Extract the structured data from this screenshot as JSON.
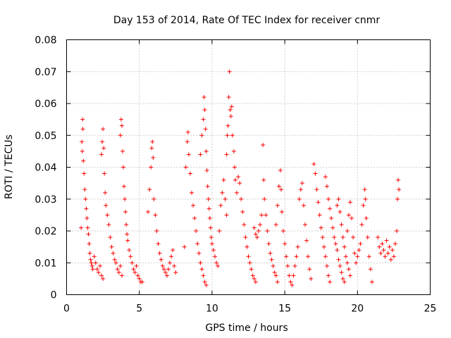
{
  "chart_data": {
    "type": "scatter",
    "title": "Day 153 of 2014, Rate Of TEC Index for receiver cnmr",
    "xlabel": "GPS time / hours",
    "ylabel": "ROTI / TECUs",
    "xlim": [
      0,
      25
    ],
    "ylim": [
      0,
      0.08
    ],
    "xticks": [
      "0",
      "5",
      "10",
      "15",
      "20",
      "25"
    ],
    "yticks": [
      "0",
      "0.01",
      "0.02",
      "0.03",
      "0.04",
      "0.05",
      "0.06",
      "0.07",
      "0.08"
    ],
    "grid": true,
    "marker": "plus",
    "color": "#ff0000",
    "series": [
      {
        "name": "ROTI",
        "points": [
          [
            1.0,
            0.021
          ],
          [
            1.05,
            0.048
          ],
          [
            1.08,
            0.045
          ],
          [
            1.1,
            0.055
          ],
          [
            1.12,
            0.052
          ],
          [
            1.15,
            0.042
          ],
          [
            1.2,
            0.038
          ],
          [
            1.25,
            0.033
          ],
          [
            1.3,
            0.03
          ],
          [
            1.35,
            0.027
          ],
          [
            1.4,
            0.024
          ],
          [
            1.45,
            0.021
          ],
          [
            1.5,
            0.019
          ],
          [
            1.55,
            0.016
          ],
          [
            1.6,
            0.013
          ],
          [
            1.65,
            0.011
          ],
          [
            1.7,
            0.01
          ],
          [
            1.75,
            0.009
          ],
          [
            1.8,
            0.008
          ],
          [
            1.9,
            0.012
          ],
          [
            2.0,
            0.01
          ],
          [
            2.1,
            0.008
          ],
          [
            2.2,
            0.007
          ],
          [
            2.3,
            0.009
          ],
          [
            2.4,
            0.006
          ],
          [
            2.5,
            0.005
          ],
          [
            2.4,
            0.044
          ],
          [
            2.45,
            0.048
          ],
          [
            2.5,
            0.052
          ],
          [
            2.55,
            0.046
          ],
          [
            2.6,
            0.038
          ],
          [
            2.65,
            0.032
          ],
          [
            2.7,
            0.028
          ],
          [
            2.8,
            0.025
          ],
          [
            2.9,
            0.022
          ],
          [
            3.0,
            0.018
          ],
          [
            3.1,
            0.015
          ],
          [
            3.2,
            0.013
          ],
          [
            3.3,
            0.011
          ],
          [
            3.4,
            0.01
          ],
          [
            3.5,
            0.008
          ],
          [
            3.6,
            0.007
          ],
          [
            3.7,
            0.009
          ],
          [
            3.8,
            0.006
          ],
          [
            3.7,
            0.05
          ],
          [
            3.75,
            0.055
          ],
          [
            3.8,
            0.053
          ],
          [
            3.85,
            0.045
          ],
          [
            3.9,
            0.04
          ],
          [
            3.95,
            0.034
          ],
          [
            4.0,
            0.03
          ],
          [
            4.05,
            0.026
          ],
          [
            4.1,
            0.022
          ],
          [
            4.15,
            0.019
          ],
          [
            4.2,
            0.017
          ],
          [
            4.3,
            0.014
          ],
          [
            4.4,
            0.012
          ],
          [
            4.5,
            0.01
          ],
          [
            4.6,
            0.008
          ],
          [
            4.7,
            0.007
          ],
          [
            4.8,
            0.009
          ],
          [
            4.9,
            0.006
          ],
          [
            5.0,
            0.005
          ],
          [
            5.1,
            0.004
          ],
          [
            5.2,
            0.004
          ],
          [
            5.6,
            0.026
          ],
          [
            5.7,
            0.033
          ],
          [
            5.8,
            0.04
          ],
          [
            5.85,
            0.046
          ],
          [
            5.9,
            0.048
          ],
          [
            5.95,
            0.043
          ],
          [
            6.0,
            0.03
          ],
          [
            6.1,
            0.025
          ],
          [
            6.2,
            0.02
          ],
          [
            6.3,
            0.016
          ],
          [
            6.4,
            0.013
          ],
          [
            6.5,
            0.011
          ],
          [
            6.6,
            0.009
          ],
          [
            6.7,
            0.008
          ],
          [
            6.8,
            0.007
          ],
          [
            6.9,
            0.006
          ],
          [
            7.0,
            0.008
          ],
          [
            7.1,
            0.01
          ],
          [
            7.2,
            0.012
          ],
          [
            7.3,
            0.014
          ],
          [
            7.4,
            0.009
          ],
          [
            7.5,
            0.007
          ],
          [
            8.1,
            0.015
          ],
          [
            8.2,
            0.04
          ],
          [
            8.3,
            0.048
          ],
          [
            8.35,
            0.051
          ],
          [
            8.4,
            0.044
          ],
          [
            8.5,
            0.038
          ],
          [
            8.6,
            0.032
          ],
          [
            8.7,
            0.028
          ],
          [
            8.8,
            0.024
          ],
          [
            8.9,
            0.02
          ],
          [
            9.0,
            0.016
          ],
          [
            9.1,
            0.013
          ],
          [
            9.2,
            0.01
          ],
          [
            9.3,
            0.008
          ],
          [
            9.4,
            0.006
          ],
          [
            9.5,
            0.004
          ],
          [
            9.6,
            0.003
          ],
          [
            9.2,
            0.044
          ],
          [
            9.3,
            0.05
          ],
          [
            9.4,
            0.055
          ],
          [
            9.45,
            0.062
          ],
          [
            9.5,
            0.058
          ],
          [
            9.55,
            0.052
          ],
          [
            9.6,
            0.045
          ],
          [
            9.65,
            0.039
          ],
          [
            9.7,
            0.034
          ],
          [
            9.75,
            0.03
          ],
          [
            9.8,
            0.027
          ],
          [
            9.85,
            0.024
          ],
          [
            9.9,
            0.021
          ],
          [
            9.95,
            0.018
          ],
          [
            10.0,
            0.016
          ],
          [
            10.1,
            0.014
          ],
          [
            10.2,
            0.012
          ],
          [
            10.3,
            0.01
          ],
          [
            10.4,
            0.009
          ],
          [
            10.5,
            0.02
          ],
          [
            10.6,
            0.028
          ],
          [
            10.7,
            0.032
          ],
          [
            10.8,
            0.036
          ],
          [
            10.9,
            0.03
          ],
          [
            11.0,
            0.025
          ],
          [
            11.0,
            0.044
          ],
          [
            11.05,
            0.05
          ],
          [
            11.1,
            0.053
          ],
          [
            11.15,
            0.062
          ],
          [
            11.2,
            0.07
          ],
          [
            11.25,
            0.058
          ],
          [
            11.3,
            0.056
          ],
          [
            11.35,
            0.059
          ],
          [
            11.4,
            0.05
          ],
          [
            11.5,
            0.045
          ],
          [
            11.55,
            0.04
          ],
          [
            11.6,
            0.036
          ],
          [
            11.7,
            0.032
          ],
          [
            11.8,
            0.037
          ],
          [
            11.9,
            0.035
          ],
          [
            12.0,
            0.03
          ],
          [
            12.1,
            0.026
          ],
          [
            12.2,
            0.022
          ],
          [
            12.3,
            0.018
          ],
          [
            12.4,
            0.015
          ],
          [
            12.5,
            0.012
          ],
          [
            12.6,
            0.01
          ],
          [
            12.7,
            0.008
          ],
          [
            12.8,
            0.006
          ],
          [
            12.9,
            0.005
          ],
          [
            13.0,
            0.004
          ],
          [
            12.9,
            0.021
          ],
          [
            13.0,
            0.019
          ],
          [
            13.1,
            0.018
          ],
          [
            13.2,
            0.02
          ],
          [
            13.3,
            0.022
          ],
          [
            13.4,
            0.025
          ],
          [
            13.5,
            0.047
          ],
          [
            13.55,
            0.036
          ],
          [
            13.6,
            0.03
          ],
          [
            13.7,
            0.025
          ],
          [
            13.8,
            0.02
          ],
          [
            13.9,
            0.016
          ],
          [
            14.0,
            0.013
          ],
          [
            14.1,
            0.011
          ],
          [
            14.2,
            0.009
          ],
          [
            14.3,
            0.007
          ],
          [
            14.4,
            0.006
          ],
          [
            14.5,
            0.004
          ],
          [
            14.4,
            0.022
          ],
          [
            14.5,
            0.028
          ],
          [
            14.6,
            0.034
          ],
          [
            14.7,
            0.039
          ],
          [
            14.75,
            0.033
          ],
          [
            14.8,
            0.026
          ],
          [
            14.9,
            0.02
          ],
          [
            15.0,
            0.016
          ],
          [
            15.1,
            0.012
          ],
          [
            15.2,
            0.009
          ],
          [
            15.3,
            0.006
          ],
          [
            15.4,
            0.004
          ],
          [
            15.5,
            0.003
          ],
          [
            15.6,
            0.006
          ],
          [
            15.7,
            0.009
          ],
          [
            15.8,
            0.012
          ],
          [
            15.9,
            0.015
          ],
          [
            16.0,
            0.03
          ],
          [
            16.1,
            0.033
          ],
          [
            16.2,
            0.035
          ],
          [
            16.3,
            0.028
          ],
          [
            16.4,
            0.022
          ],
          [
            16.5,
            0.017
          ],
          [
            16.6,
            0.012
          ],
          [
            16.7,
            0.008
          ],
          [
            16.8,
            0.005
          ],
          [
            17.0,
            0.041
          ],
          [
            17.1,
            0.038
          ],
          [
            17.2,
            0.033
          ],
          [
            17.3,
            0.029
          ],
          [
            17.4,
            0.025
          ],
          [
            17.5,
            0.021
          ],
          [
            17.6,
            0.018
          ],
          [
            17.7,
            0.015
          ],
          [
            17.8,
            0.012
          ],
          [
            17.9,
            0.009
          ],
          [
            18.0,
            0.006
          ],
          [
            18.1,
            0.004
          ],
          [
            17.8,
            0.037
          ],
          [
            17.9,
            0.034
          ],
          [
            18.0,
            0.03
          ],
          [
            18.1,
            0.027
          ],
          [
            18.2,
            0.024
          ],
          [
            18.3,
            0.021
          ],
          [
            18.4,
            0.018
          ],
          [
            18.5,
            0.016
          ],
          [
            18.6,
            0.014
          ],
          [
            18.7,
            0.011
          ],
          [
            18.8,
            0.009
          ],
          [
            18.9,
            0.007
          ],
          [
            19.0,
            0.005
          ],
          [
            19.1,
            0.004
          ],
          [
            18.6,
            0.028
          ],
          [
            18.7,
            0.03
          ],
          [
            18.8,
            0.026
          ],
          [
            18.9,
            0.022
          ],
          [
            19.0,
            0.018
          ],
          [
            19.1,
            0.015
          ],
          [
            19.2,
            0.012
          ],
          [
            19.3,
            0.01
          ],
          [
            19.4,
            0.008
          ],
          [
            19.5,
            0.006
          ],
          [
            19.3,
            0.02
          ],
          [
            19.4,
            0.025
          ],
          [
            19.5,
            0.029
          ],
          [
            19.6,
            0.024
          ],
          [
            19.7,
            0.018
          ],
          [
            19.8,
            0.013
          ],
          [
            19.9,
            0.01
          ],
          [
            20.0,
            0.012
          ],
          [
            20.1,
            0.014
          ],
          [
            20.2,
            0.016
          ],
          [
            20.3,
            0.022
          ],
          [
            20.4,
            0.028
          ],
          [
            20.5,
            0.033
          ],
          [
            20.55,
            0.03
          ],
          [
            20.6,
            0.024
          ],
          [
            20.7,
            0.018
          ],
          [
            20.8,
            0.012
          ],
          [
            20.9,
            0.008
          ],
          [
            21.0,
            0.004
          ],
          [
            21.4,
            0.018
          ],
          [
            21.5,
            0.015
          ],
          [
            21.6,
            0.013
          ],
          [
            21.7,
            0.016
          ],
          [
            21.8,
            0.014
          ],
          [
            21.9,
            0.012
          ],
          [
            22.0,
            0.017
          ],
          [
            22.1,
            0.013
          ],
          [
            22.2,
            0.015
          ],
          [
            22.3,
            0.011
          ],
          [
            22.4,
            0.014
          ],
          [
            22.5,
            0.012
          ],
          [
            22.6,
            0.016
          ],
          [
            22.7,
            0.02
          ],
          [
            22.75,
            0.03
          ],
          [
            22.8,
            0.036
          ],
          [
            22.85,
            0.033
          ]
        ]
      }
    ]
  }
}
